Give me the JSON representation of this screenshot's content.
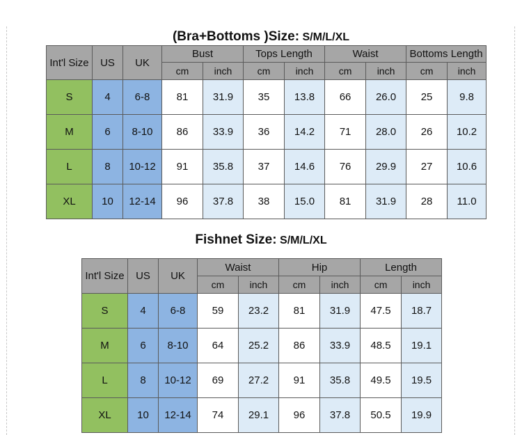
{
  "table1": {
    "title": "(Bra+Bottoms )Size:",
    "subtitle": "S/M/L/XL",
    "col_headers": {
      "size": "Int'l Size",
      "us": "US",
      "uk": "UK"
    },
    "groups": [
      "Bust",
      "Tops Length",
      "Waist",
      "Bottoms Length"
    ],
    "unit_cm": "cm",
    "unit_inch": "inch",
    "rows": [
      {
        "size": "S",
        "us": "4",
        "uk": "6-8",
        "values": [
          "81",
          "31.9",
          "35",
          "13.8",
          "66",
          "26.0",
          "25",
          "9.8"
        ]
      },
      {
        "size": "M",
        "us": "6",
        "uk": "8-10",
        "values": [
          "86",
          "33.9",
          "36",
          "14.2",
          "71",
          "28.0",
          "26",
          "10.2"
        ]
      },
      {
        "size": "L",
        "us": "8",
        "uk": "10-12",
        "values": [
          "91",
          "35.8",
          "37",
          "14.6",
          "76",
          "29.9",
          "27",
          "10.6"
        ]
      },
      {
        "size": "XL",
        "us": "10",
        "uk": "12-14",
        "values": [
          "96",
          "37.8",
          "38",
          "15.0",
          "81",
          "31.9",
          "28",
          "11.0"
        ]
      }
    ]
  },
  "table2": {
    "title": "Fishnet Size:",
    "subtitle": "S/M/L/XL",
    "col_headers": {
      "size": "Int'l Size",
      "us": "US",
      "uk": "UK"
    },
    "groups": [
      "Waist",
      "Hip",
      "Length"
    ],
    "unit_cm": "cm",
    "unit_inch": "inch",
    "rows": [
      {
        "size": "S",
        "us": "4",
        "uk": "6-8",
        "values": [
          "59",
          "23.2",
          "81",
          "31.9",
          "47.5",
          "18.7"
        ]
      },
      {
        "size": "M",
        "us": "6",
        "uk": "8-10",
        "values": [
          "64",
          "25.2",
          "86",
          "33.9",
          "48.5",
          "19.1"
        ]
      },
      {
        "size": "L",
        "us": "8",
        "uk": "10-12",
        "values": [
          "69",
          "27.2",
          "91",
          "35.8",
          "49.5",
          "19.5"
        ]
      },
      {
        "size": "XL",
        "us": "10",
        "uk": "12-14",
        "values": [
          "74",
          "29.1",
          "96",
          "37.8",
          "50.5",
          "19.9"
        ]
      }
    ]
  },
  "colors": {
    "header_gray": "#a6a6a6",
    "size_green": "#92c060",
    "us_uk_blue": "#8db4e2",
    "inch_lightblue": "#ddebf7",
    "cm_white": "#ffffff",
    "border": "#5a5a5a"
  }
}
